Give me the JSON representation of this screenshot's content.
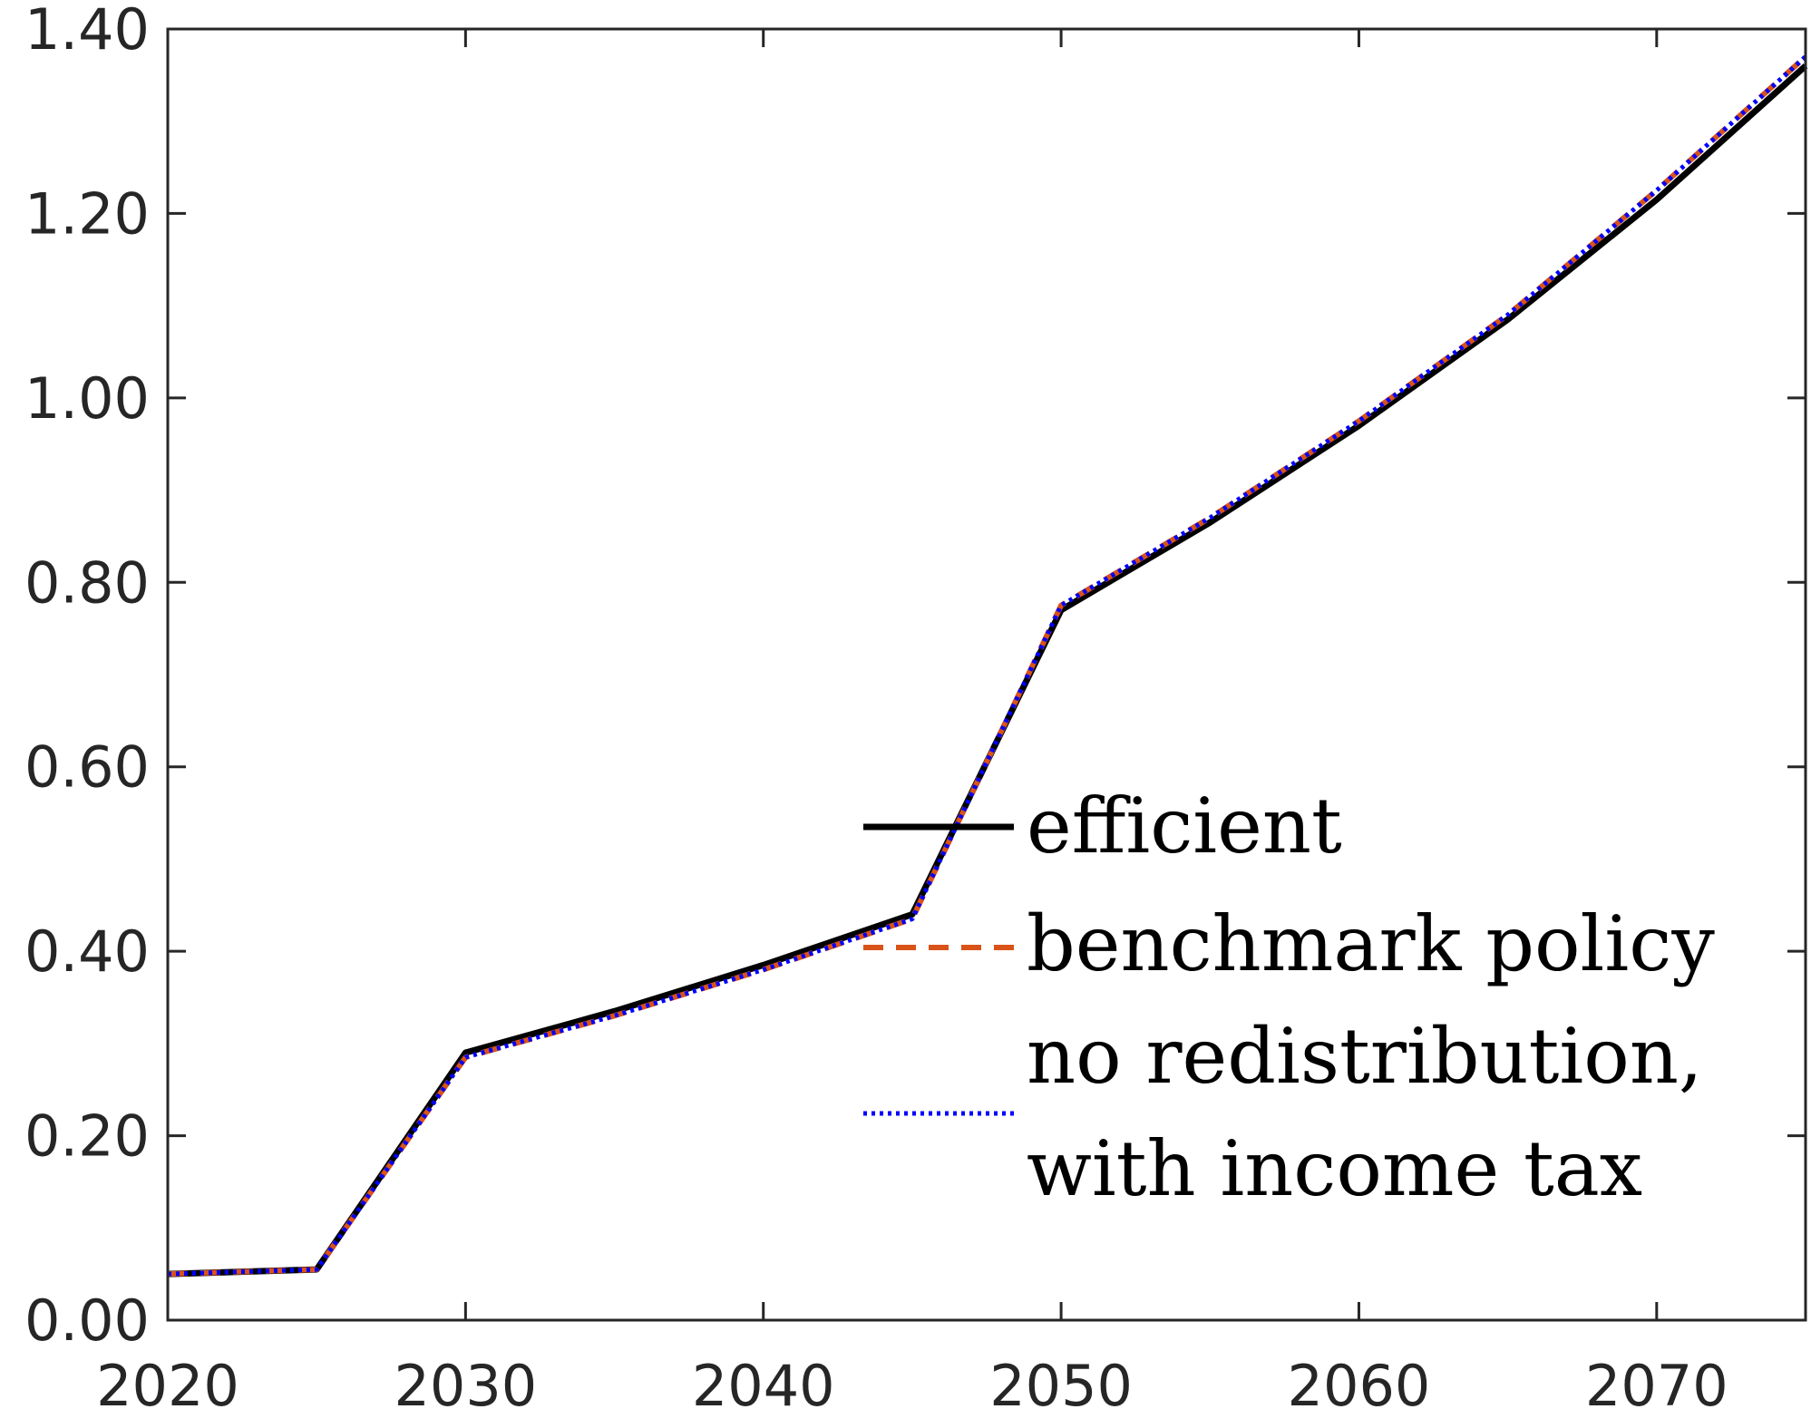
{
  "chart_data": {
    "type": "line",
    "title": "",
    "xlabel": "",
    "ylabel": "",
    "xlim": [
      2020,
      2075
    ],
    "ylim": [
      0,
      1.4
    ],
    "x_ticks": [
      2020,
      2030,
      2040,
      2050,
      2060,
      2070
    ],
    "y_ticks": [
      0.0,
      0.2,
      0.4,
      0.6,
      0.8,
      1.0,
      1.2,
      1.4
    ],
    "x_tick_labels": [
      "2020",
      "2030",
      "2040",
      "2050",
      "2060",
      "2070"
    ],
    "y_tick_labels": [
      "0.00",
      "0.20",
      "0.40",
      "0.60",
      "0.80",
      "1.00",
      "1.20",
      "1.40"
    ],
    "grid": false,
    "legend_position": "lower-right",
    "x": [
      2020,
      2025,
      2030,
      2035,
      2040,
      2045,
      2050,
      2055,
      2060,
      2065,
      2070,
      2075
    ],
    "series": [
      {
        "name": "efficient",
        "legend_lines": [
          "efficient"
        ],
        "color": "#000000",
        "style": "solid",
        "values": [
          0.05,
          0.055,
          0.29,
          0.335,
          0.385,
          0.44,
          0.77,
          0.865,
          0.97,
          1.085,
          1.215,
          1.36
        ]
      },
      {
        "name": "benchmark policy",
        "legend_lines": [
          "benchmark policy"
        ],
        "color": "#D95319",
        "style": "dashed",
        "values": [
          0.05,
          0.055,
          0.285,
          0.33,
          0.38,
          0.435,
          0.775,
          0.87,
          0.975,
          1.09,
          1.225,
          1.37
        ]
      },
      {
        "name": "no redistribution, with income tax",
        "legend_lines": [
          "no redistribution,",
          "with income tax"
        ],
        "color": "#0000FF",
        "style": "dotted",
        "values": [
          0.05,
          0.055,
          0.285,
          0.33,
          0.38,
          0.435,
          0.775,
          0.87,
          0.975,
          1.09,
          1.225,
          1.37
        ]
      }
    ]
  }
}
